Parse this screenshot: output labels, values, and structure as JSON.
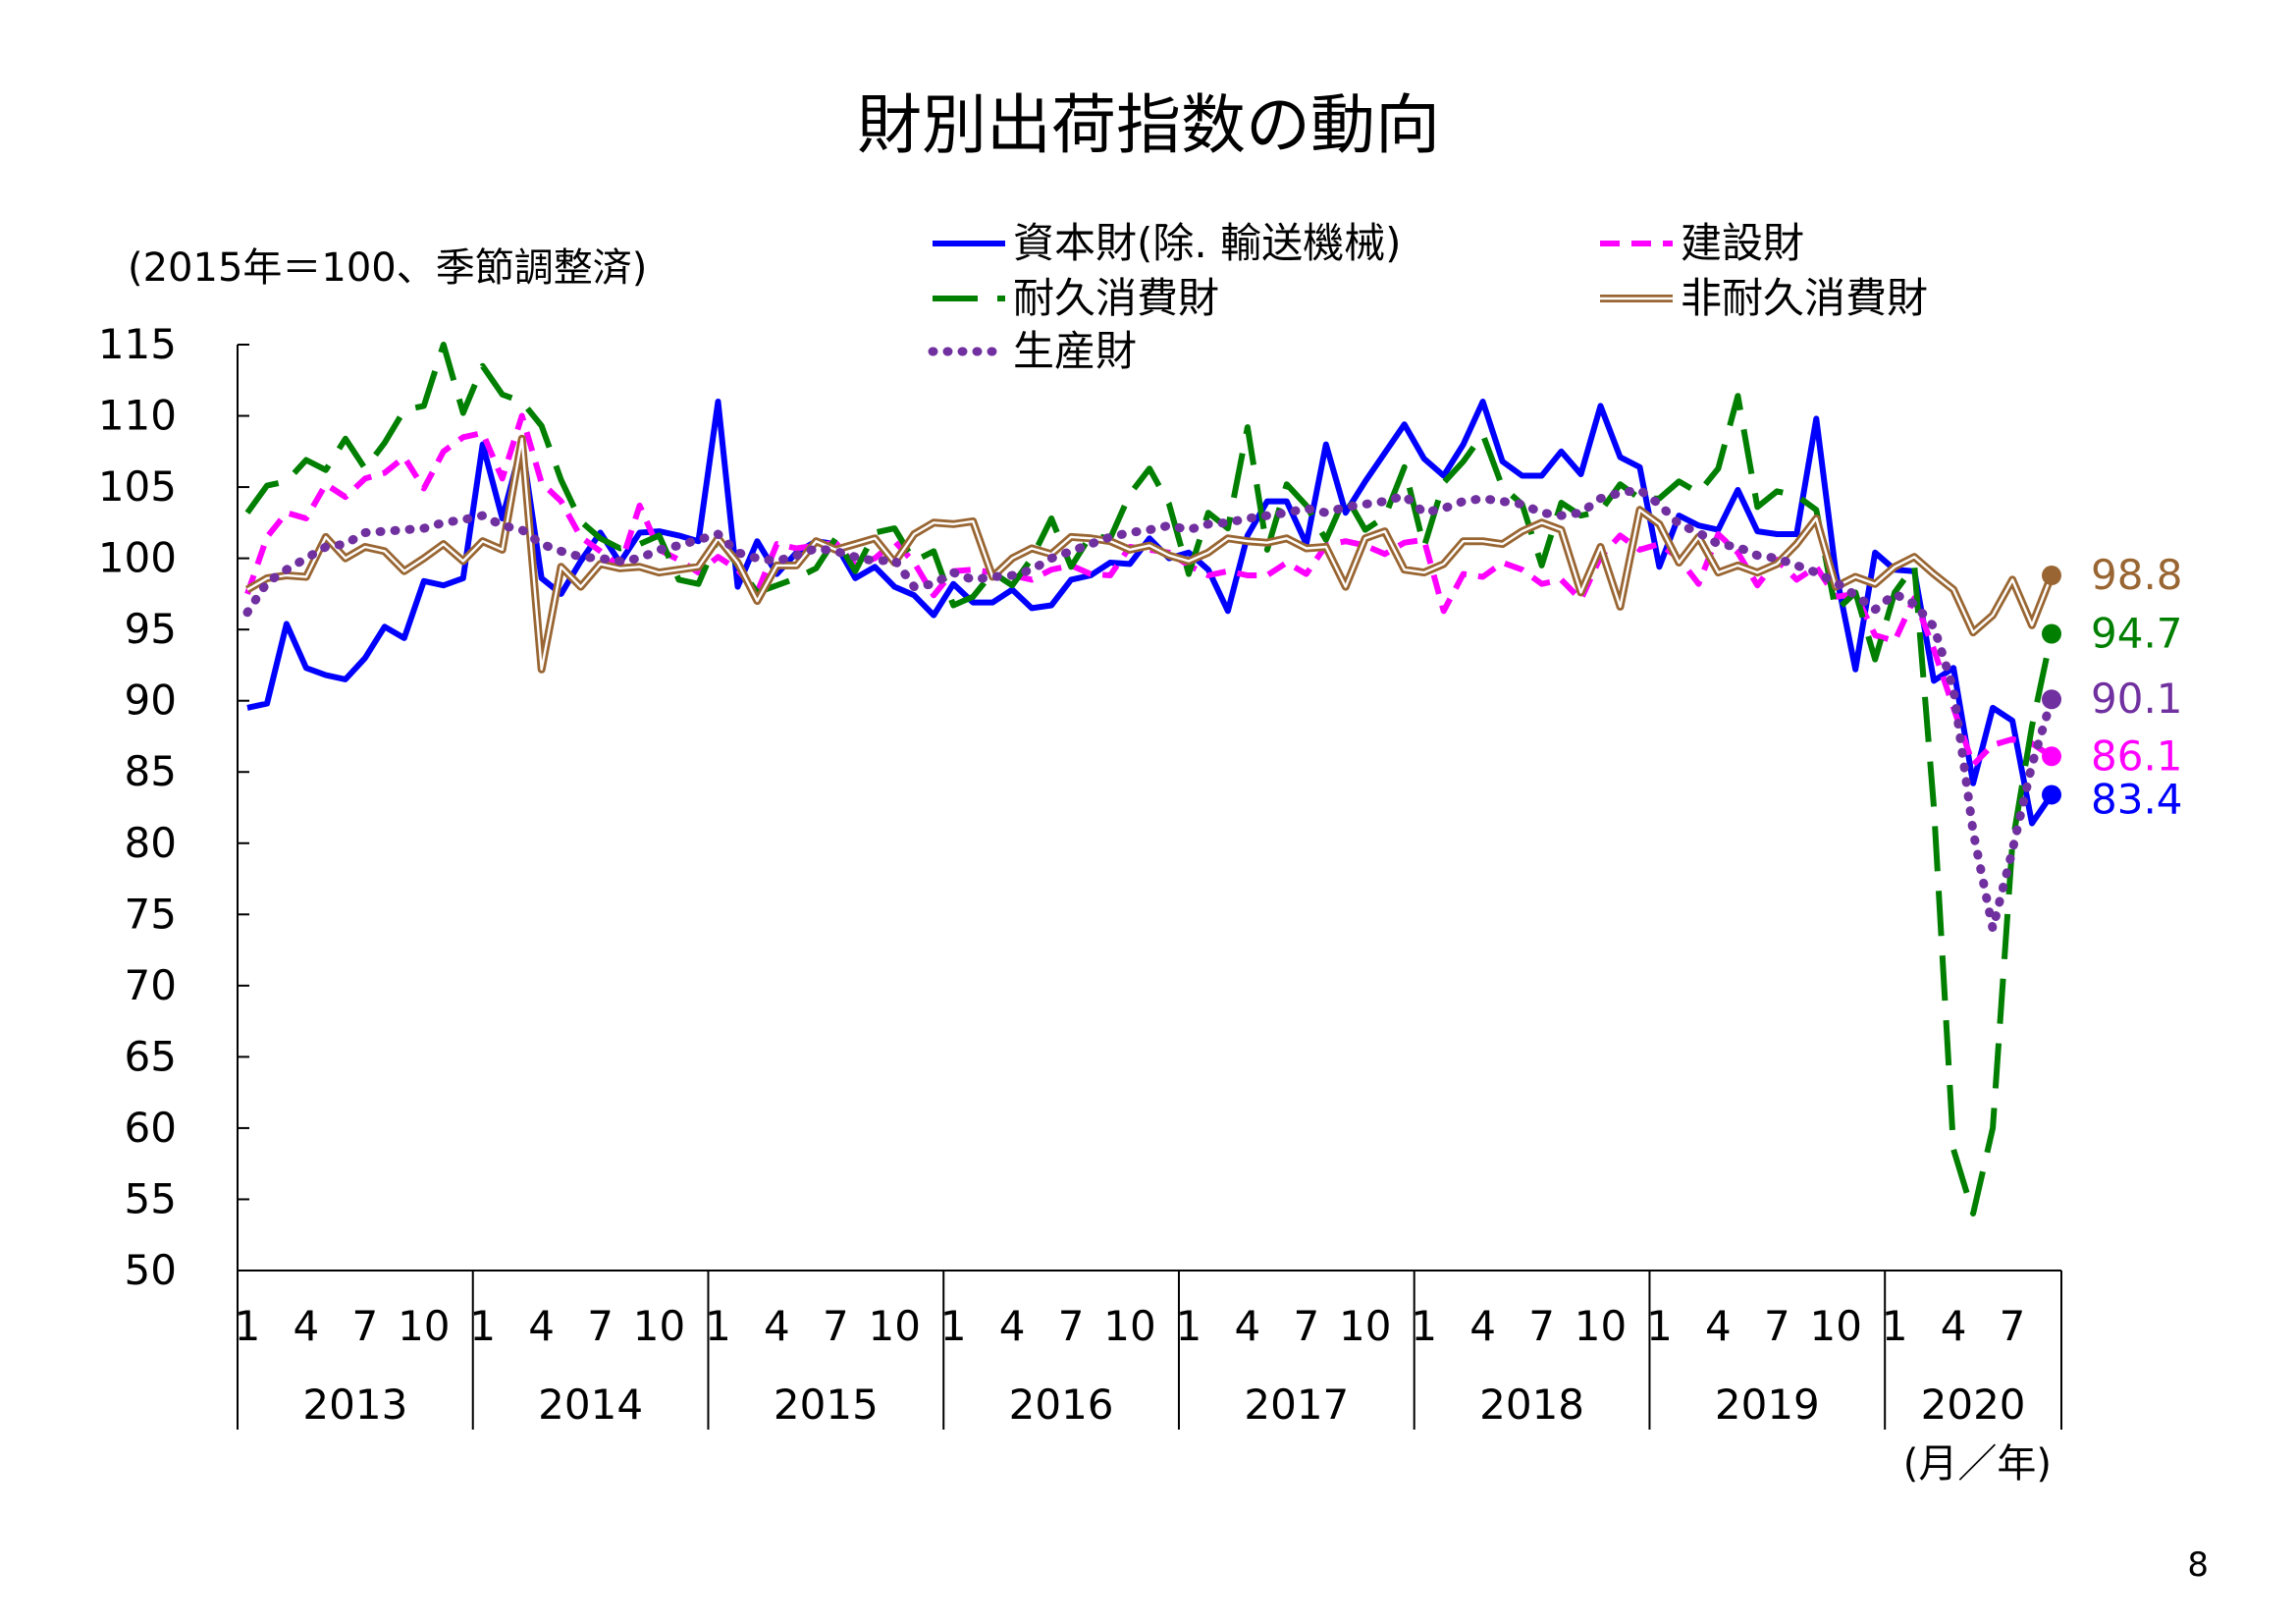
{
  "page_number": "8",
  "chart_data": {
    "type": "line",
    "title": "財別出荷指数の動向",
    "ylabel": "(2015年＝100、季節調整済)",
    "xlabel": "(月／年)",
    "ylim": [
      50,
      115
    ],
    "yticks": [
      50,
      55,
      60,
      65,
      70,
      75,
      80,
      85,
      90,
      95,
      100,
      105,
      110,
      115
    ],
    "month_tick_labels": [
      "1",
      "4",
      "7",
      "10"
    ],
    "years": [
      "2013",
      "2014",
      "2015",
      "2016",
      "2017",
      "2018",
      "2019",
      "2020"
    ],
    "months_in_last_year": 9,
    "legend_placement": "top",
    "series": [
      {
        "name": "資本財(除. 輸送機械)",
        "color": "#0000ff",
        "style": "solid",
        "end_label": "83.4",
        "values": [
          89.5,
          89.8,
          95.4,
          92.3,
          91.8,
          91.5,
          93.0,
          95.2,
          94.4,
          98.4,
          98.1,
          98.6,
          108.0,
          102.8,
          108.0,
          98.6,
          97.5,
          99.8,
          101.8,
          99.7,
          101.8,
          101.9,
          101.6,
          101.2,
          111.0,
          98.0,
          101.2,
          98.9,
          100.4,
          101.2,
          101.0,
          98.6,
          99.4,
          98.0,
          97.4,
          96.0,
          98.2,
          96.9,
          96.9,
          97.8,
          96.5,
          96.7,
          98.5,
          98.8,
          99.7,
          99.6,
          101.4,
          100.0,
          100.4,
          99.2,
          96.3,
          101.6,
          104.0,
          104.0,
          101.0,
          108.0,
          103.2,
          105.4,
          107.4,
          109.4,
          107.0,
          105.8,
          108.0,
          111.0,
          106.8,
          105.8,
          105.8,
          107.5,
          105.9,
          110.7,
          107.1,
          106.4,
          99.4,
          103.0,
          102.3,
          102.0,
          104.8,
          101.9,
          101.7,
          101.7,
          109.8,
          99.0,
          92.2,
          100.4,
          99.2,
          99.1,
          91.4,
          92.3,
          84.2,
          89.5,
          88.6,
          81.4,
          83.4
        ]
      },
      {
        "name": "建設財",
        "color": "#ff00ff",
        "style": "dashed",
        "end_label": "86.1",
        "values": [
          97.5,
          101.5,
          103.2,
          102.8,
          105.2,
          104.3,
          105.6,
          106.0,
          107.1,
          104.9,
          107.5,
          108.5,
          108.8,
          105.6,
          110.0,
          105.3,
          104.0,
          101.5,
          100.5,
          99.4,
          103.7,
          100.6,
          99.9,
          99.0,
          100.1,
          99.2,
          97.6,
          101.0,
          100.7,
          100.9,
          101.1,
          99.5,
          100.0,
          101.2,
          99.7,
          97.4,
          99.1,
          99.2,
          99.0,
          98.8,
          98.5,
          99.2,
          99.5,
          98.9,
          98.8,
          100.8,
          100.6,
          100.4,
          99.5,
          98.8,
          99.1,
          98.8,
          98.8,
          99.7,
          98.9,
          100.9,
          101.2,
          100.9,
          100.3,
          101.1,
          101.3,
          96.3,
          98.9,
          98.7,
          99.7,
          99.2,
          98.2,
          98.5,
          97.1,
          100.1,
          101.6,
          100.6,
          101.0,
          100.0,
          98.2,
          101.7,
          100.4,
          98.1,
          99.9,
          98.5,
          99.4,
          97.3,
          97.5,
          94.6,
          94.2,
          97.2,
          93.6,
          89.5,
          85.5,
          86.9,
          87.3,
          87.0,
          86.1
        ]
      },
      {
        "name": "耐久消費財",
        "color": "#007f00",
        "style": "longdash",
        "end_label": "94.7",
        "values": [
          103.2,
          105.1,
          105.4,
          106.9,
          106.2,
          108.4,
          106.3,
          108.1,
          110.4,
          110.7,
          115.0,
          110.2,
          113.5,
          111.5,
          111.0,
          109.3,
          105.5,
          102.6,
          101.4,
          100.7,
          101.0,
          101.6,
          98.5,
          98.2,
          101.4,
          99.5,
          97.6,
          98.1,
          98.6,
          99.3,
          101.4,
          99.1,
          101.8,
          102.1,
          99.8,
          100.5,
          96.7,
          97.3,
          99.0,
          98.1,
          100.0,
          102.8,
          99.4,
          101.6,
          101.4,
          104.5,
          106.3,
          103.8,
          98.9,
          103.2,
          102.1,
          109.2,
          100.6,
          105.2,
          103.7,
          101.3,
          104.4,
          102.0,
          102.9,
          106.4,
          100.8,
          105.3,
          106.8,
          108.7,
          105.0,
          103.8,
          99.5,
          103.9,
          103.0,
          103.3,
          105.2,
          104.2,
          104.2,
          105.4,
          104.6,
          106.3,
          111.4,
          103.6,
          104.7,
          104.4,
          103.4,
          96.3,
          97.6,
          92.9,
          97.6,
          99.5,
          82.5,
          58.5,
          54.0,
          60.0,
          80.0,
          88.2,
          94.7
        ]
      },
      {
        "name": "非耐久消費財",
        "color": "#996633",
        "style": "double",
        "end_label": "98.8",
        "values": [
          97.8,
          98.6,
          98.8,
          98.7,
          101.5,
          100.0,
          100.8,
          100.5,
          99.1,
          100.0,
          101.0,
          99.8,
          101.2,
          100.6,
          108.4,
          92.2,
          99.4,
          98.0,
          99.6,
          99.3,
          99.4,
          99.0,
          99.2,
          99.4,
          101.4,
          99.7,
          97.0,
          99.5,
          99.5,
          101.2,
          100.6,
          101.0,
          101.4,
          99.7,
          101.7,
          102.5,
          102.4,
          102.6,
          98.7,
          100.0,
          100.7,
          100.3,
          101.5,
          101.4,
          101.2,
          100.6,
          100.9,
          100.2,
          99.8,
          100.4,
          101.4,
          101.2,
          101.1,
          101.4,
          100.7,
          100.8,
          98.0,
          101.4,
          101.9,
          99.2,
          99.0,
          99.6,
          101.2,
          101.2,
          101.0,
          101.9,
          102.5,
          102.0,
          97.6,
          100.8,
          96.6,
          103.4,
          102.4,
          99.7,
          101.5,
          99.0,
          99.5,
          99.0,
          99.6,
          101.0,
          102.8,
          98.0,
          98.7,
          98.2,
          99.4,
          100.1,
          98.9,
          97.8,
          94.8,
          96.0,
          98.5,
          95.3,
          98.8
        ]
      },
      {
        "name": "生産財",
        "color": "#7030a0",
        "style": "dotted",
        "end_label": "90.1",
        "values": [
          96.2,
          98.3,
          99.2,
          100.0,
          100.8,
          101.0,
          101.8,
          101.9,
          102.0,
          102.1,
          102.5,
          102.7,
          103.0,
          102.3,
          102.0,
          101.0,
          100.5,
          100.1,
          100.0,
          99.8,
          100.0,
          100.6,
          100.9,
          101.3,
          101.7,
          100.4,
          100.0,
          99.8,
          100.2,
          100.7,
          100.5,
          100.1,
          99.8,
          99.9,
          98.0,
          98.2,
          99.0,
          98.5,
          98.7,
          98.8,
          99.2,
          100.0,
          100.5,
          101.0,
          101.5,
          101.8,
          102.0,
          102.3,
          102.0,
          102.4,
          102.5,
          102.8,
          103.0,
          103.2,
          103.5,
          103.2,
          103.6,
          103.8,
          104.0,
          104.4,
          103.2,
          103.5,
          104.0,
          104.2,
          104.0,
          103.8,
          103.2,
          103.0,
          103.2,
          104.2,
          104.6,
          104.8,
          103.8,
          102.4,
          101.8,
          101.0,
          100.8,
          100.2,
          100.0,
          99.5,
          99.0,
          98.3,
          97.4,
          96.4,
          97.5,
          96.8,
          95.2,
          90.8,
          80.8,
          74.0,
          79.5,
          85.5,
          90.1
        ]
      }
    ]
  }
}
